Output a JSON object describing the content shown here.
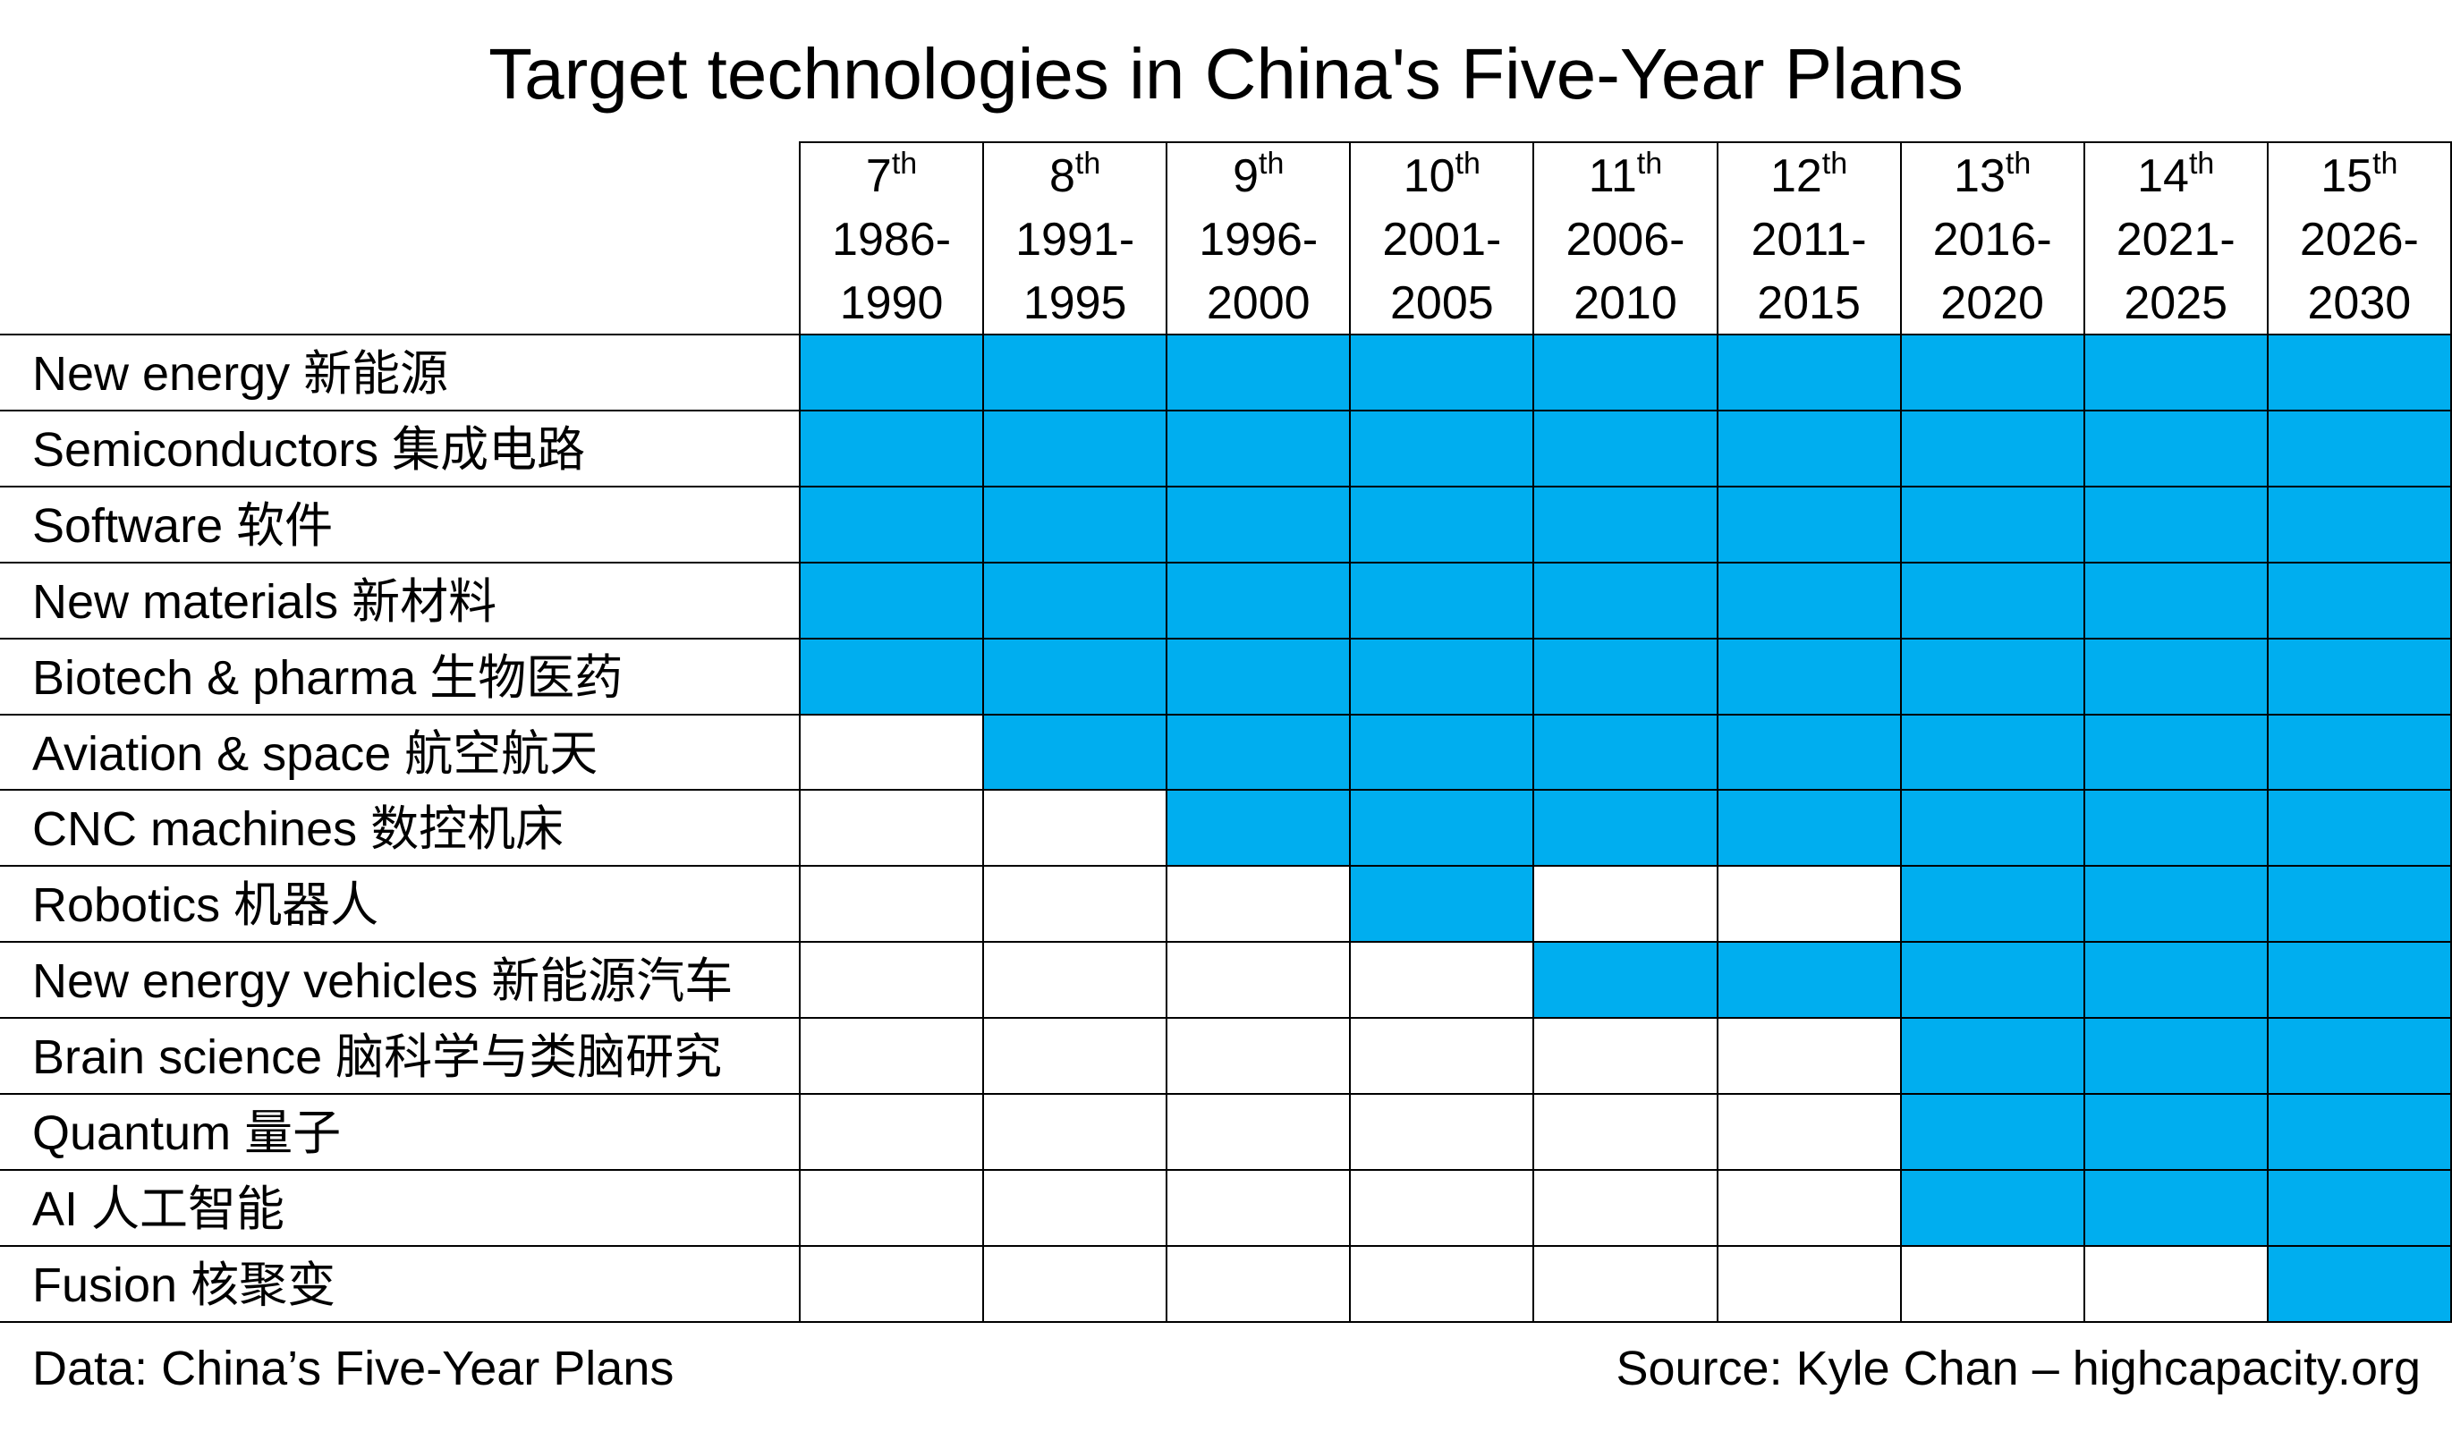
{
  "chart_data": {
    "type": "table",
    "title": "Target technologies in China's Five-Year Plans",
    "columns": [
      {
        "plan": "7",
        "suffix": "th",
        "years": "1986-1990"
      },
      {
        "plan": "8",
        "suffix": "th",
        "years": "1991-1995"
      },
      {
        "plan": "9",
        "suffix": "th",
        "years": "1996-2000"
      },
      {
        "plan": "10",
        "suffix": "th",
        "years": "2001-2005"
      },
      {
        "plan": "11",
        "suffix": "th",
        "years": "2006-2010"
      },
      {
        "plan": "12",
        "suffix": "th",
        "years": "2011-2015"
      },
      {
        "plan": "13",
        "suffix": "th",
        "years": "2016-2020"
      },
      {
        "plan": "14",
        "suffix": "th",
        "years": "2021-2025"
      },
      {
        "plan": "15",
        "suffix": "th",
        "years": "2026-2030"
      }
    ],
    "rows": [
      {
        "label": "New energy 新能源",
        "targeted": [
          1,
          1,
          1,
          1,
          1,
          1,
          1,
          1,
          1
        ]
      },
      {
        "label": "Semiconductors 集成电路",
        "targeted": [
          1,
          1,
          1,
          1,
          1,
          1,
          1,
          1,
          1
        ]
      },
      {
        "label": "Software 软件",
        "targeted": [
          1,
          1,
          1,
          1,
          1,
          1,
          1,
          1,
          1
        ]
      },
      {
        "label": "New materials 新材料",
        "targeted": [
          1,
          1,
          1,
          1,
          1,
          1,
          1,
          1,
          1
        ]
      },
      {
        "label": "Biotech & pharma 生物医药",
        "targeted": [
          1,
          1,
          1,
          1,
          1,
          1,
          1,
          1,
          1
        ]
      },
      {
        "label": "Aviation & space 航空航天",
        "targeted": [
          0,
          1,
          1,
          1,
          1,
          1,
          1,
          1,
          1
        ]
      },
      {
        "label": "CNC machines 数控机床",
        "targeted": [
          0,
          0,
          1,
          1,
          1,
          1,
          1,
          1,
          1
        ]
      },
      {
        "label": "Robotics 机器人",
        "targeted": [
          0,
          0,
          0,
          1,
          0,
          0,
          1,
          1,
          1
        ]
      },
      {
        "label": "New energy vehicles 新能源汽车",
        "targeted": [
          0,
          0,
          0,
          0,
          1,
          1,
          1,
          1,
          1
        ]
      },
      {
        "label": "Brain science 脑科学与类脑研究",
        "targeted": [
          0,
          0,
          0,
          0,
          0,
          0,
          1,
          1,
          1
        ]
      },
      {
        "label": "Quantum 量子",
        "targeted": [
          0,
          0,
          0,
          0,
          0,
          0,
          1,
          1,
          1
        ]
      },
      {
        "label": "AI 人工智能",
        "targeted": [
          0,
          0,
          0,
          0,
          0,
          0,
          1,
          1,
          1
        ]
      },
      {
        "label": "Fusion 核聚变",
        "targeted": [
          0,
          0,
          0,
          0,
          0,
          0,
          0,
          0,
          1
        ]
      }
    ]
  },
  "footer": {
    "data_note": "Data: China’s Five-Year Plans",
    "source": "Source: Kyle Chan – highcapacity.org"
  },
  "colors": {
    "fill": "#00AEEF",
    "empty": "#FFFFFF",
    "line": "#000000"
  }
}
